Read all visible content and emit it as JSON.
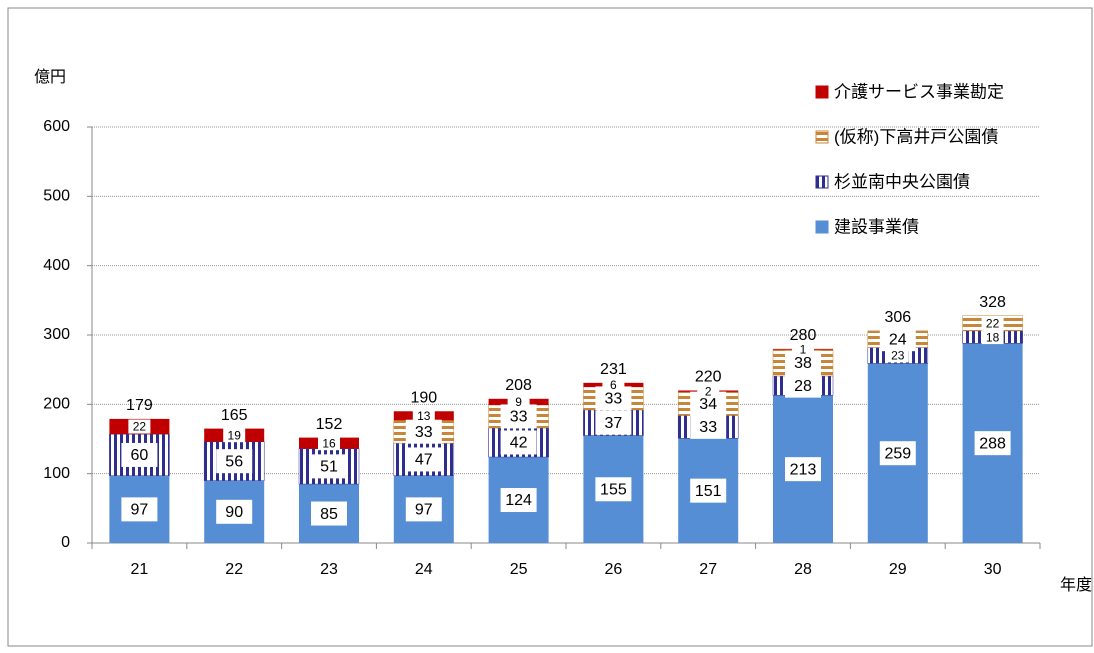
{
  "chart_data": {
    "type": "stacked_bar",
    "y_label": "億円",
    "x_label": "年度",
    "categories": [
      "21",
      "22",
      "23",
      "24",
      "25",
      "26",
      "27",
      "28",
      "29",
      "30"
    ],
    "series": [
      {
        "name": "建設事業債",
        "color": "#558ed5",
        "pattern": "solid",
        "values": [
          97,
          90,
          85,
          97,
          124,
          155,
          151,
          213,
          259,
          288
        ]
      },
      {
        "name": "杉並南中央公園債",
        "color": "#2e2e8f",
        "pattern": "vertical",
        "values": [
          60,
          56,
          51,
          47,
          42,
          37,
          33,
          28,
          23,
          18
        ]
      },
      {
        "name": "(仮称)下高井戸公園債",
        "color": "#c8863a",
        "pattern": "horizontal",
        "values": [
          null,
          null,
          null,
          33,
          33,
          33,
          34,
          38,
          24,
          22
        ]
      },
      {
        "name": "介護サービス事業勘定",
        "color": "#c00000",
        "pattern": "solid",
        "values": [
          22,
          19,
          16,
          13,
          9,
          6,
          2,
          1,
          null,
          null
        ]
      }
    ],
    "totals": [
      179,
      165,
      152,
      190,
      208,
      231,
      220,
      280,
      306,
      328
    ],
    "ylim": [
      0,
      600
    ],
    "yticks": [
      0,
      100,
      200,
      300,
      400,
      500,
      600
    ],
    "grid": true,
    "legend": "upper right"
  }
}
